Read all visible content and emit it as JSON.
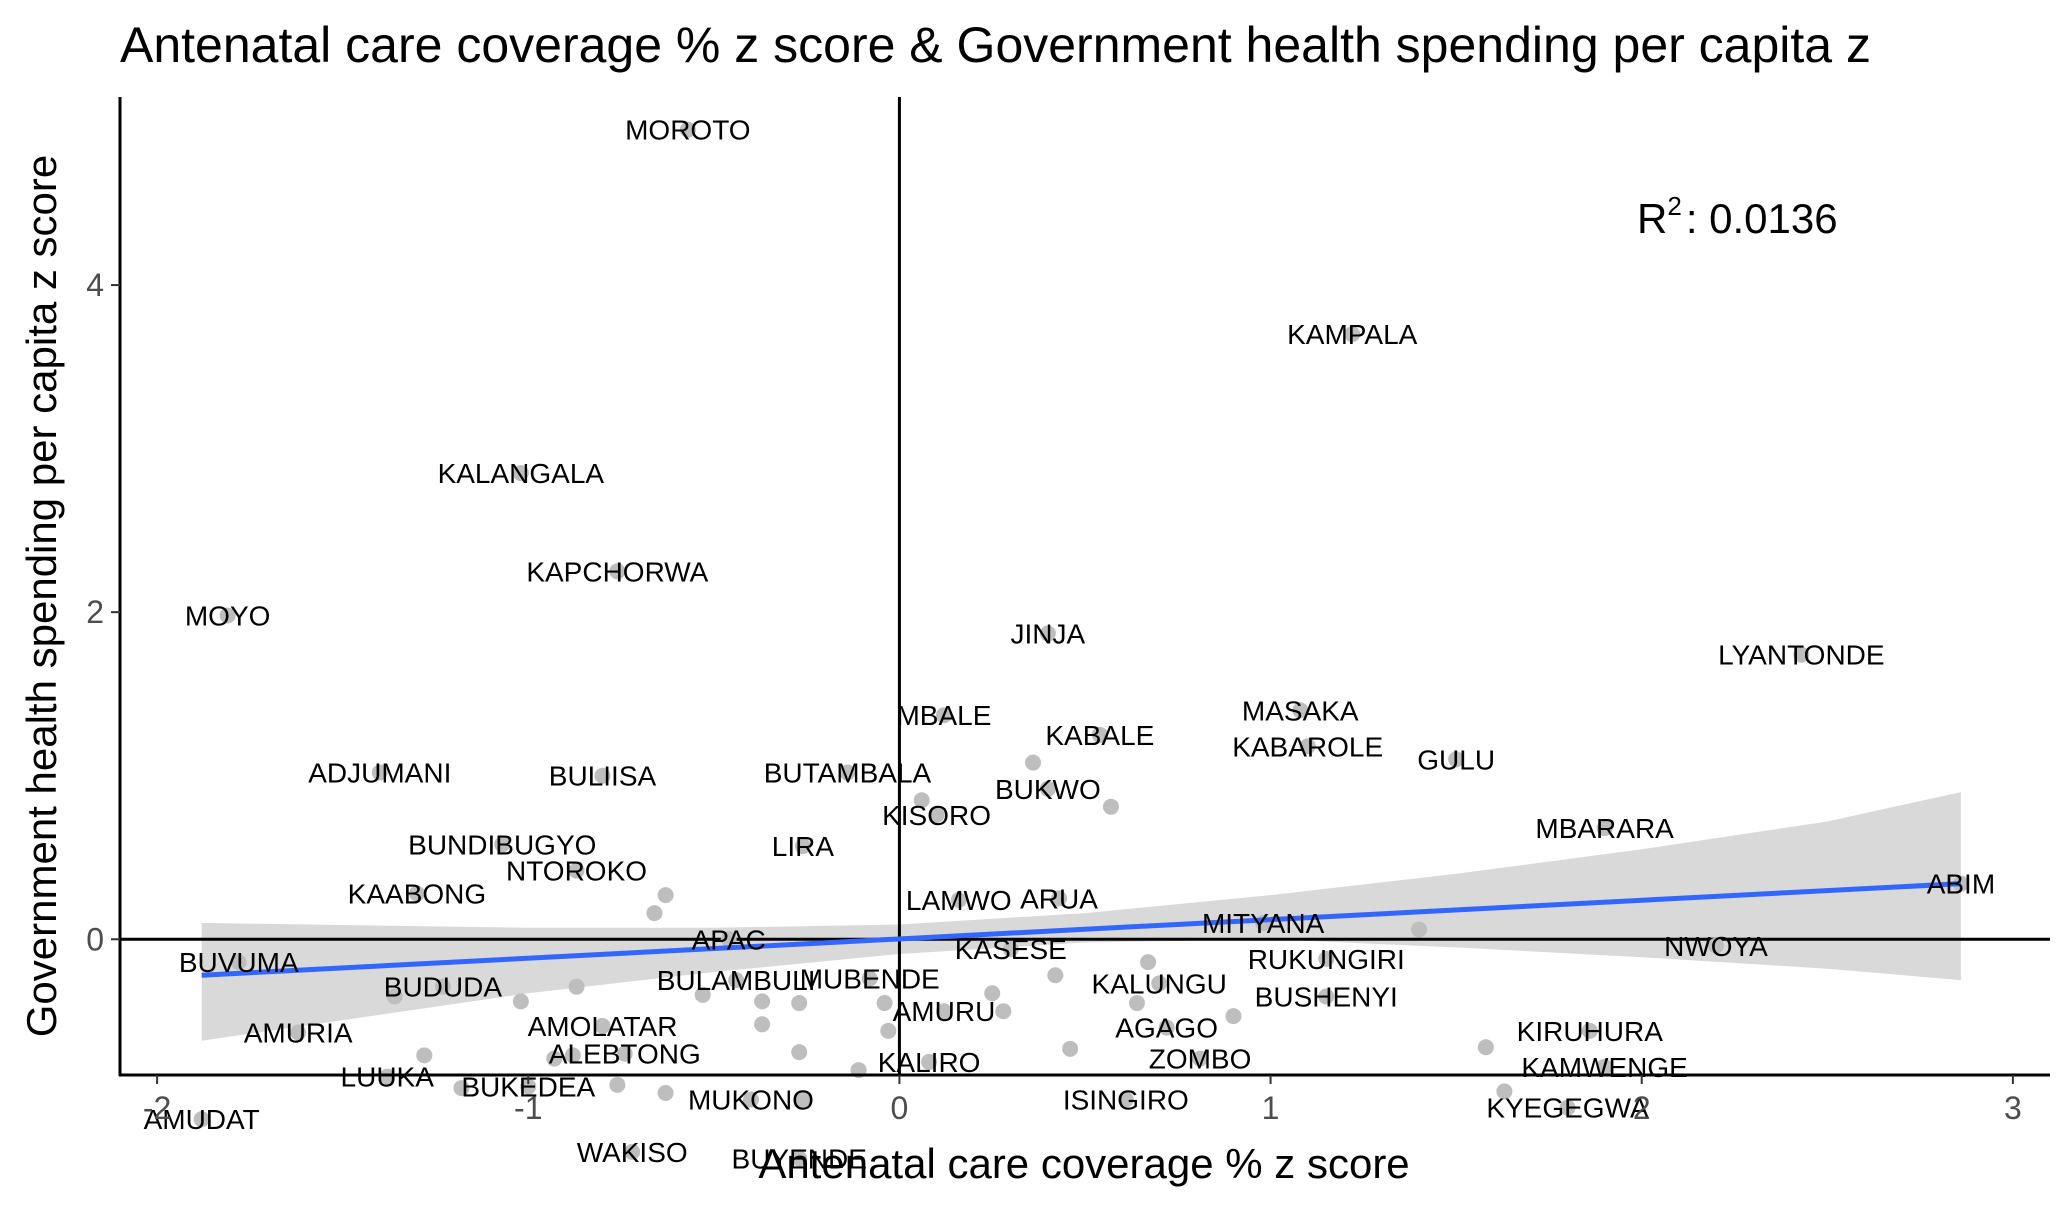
{
  "chart_data": {
    "type": "scatter",
    "title": "Antenatal care coverage % z score & Government health spending per capita z",
    "xlabel": "Antenatal care coverage % z score",
    "ylabel": "Government health spending per capita z score",
    "xlim": [
      -2.1,
      3.1
    ],
    "ylim": [
      -0.83,
      5.15
    ],
    "xticks": [
      -2,
      -1,
      0,
      1,
      2,
      3
    ],
    "yticks": [
      0,
      2,
      4
    ],
    "reference_lines": {
      "x": 0,
      "y": 0
    },
    "annotation": {
      "r2_label": "R",
      "r2_exponent": "2",
      "r2_value": ": 0.0136"
    },
    "colors": {
      "points": "#bebebe",
      "fit_line": "#3366ff",
      "ribbon": "#d9d9d9",
      "axis": "#000000"
    },
    "fit": {
      "x": [
        -1.88,
        2.86
      ],
      "y": [
        -0.22,
        0.34
      ]
    },
    "confidence_band": {
      "x": [
        -1.88,
        -1.0,
        -0.5,
        0.0,
        0.5,
        1.0,
        1.5,
        2.0,
        2.5,
        2.86
      ],
      "upper": [
        0.1,
        0.07,
        0.07,
        0.09,
        0.16,
        0.27,
        0.4,
        0.55,
        0.72,
        0.9
      ],
      "lower": [
        -0.62,
        -0.33,
        -0.2,
        -0.09,
        -0.02,
        0.0,
        -0.05,
        -0.11,
        -0.18,
        -0.25
      ]
    },
    "points": [
      {
        "x": -0.57,
        "y": 4.95,
        "label": "MOROTO"
      },
      {
        "x": 1.22,
        "y": 3.7,
        "label": "KAMPALA"
      },
      {
        "x": -1.02,
        "y": 2.85,
        "label": "KALANGALA"
      },
      {
        "x": -0.76,
        "y": 2.25,
        "label": "KAPCHORWA"
      },
      {
        "x": -1.81,
        "y": 1.98,
        "label": "MOYO"
      },
      {
        "x": 0.4,
        "y": 1.87,
        "label": "JINJA"
      },
      {
        "x": 2.43,
        "y": 1.74,
        "label": "LYANTONDE"
      },
      {
        "x": 1.08,
        "y": 1.4,
        "label": "MASAKA"
      },
      {
        "x": 0.12,
        "y": 1.37,
        "label": "MBALE"
      },
      {
        "x": 0.54,
        "y": 1.25,
        "label": "KABALE"
      },
      {
        "x": 1.1,
        "y": 1.18,
        "label": "KABAROLE"
      },
      {
        "x": 1.5,
        "y": 1.1,
        "label": "GULU"
      },
      {
        "x": 0.36,
        "y": 1.08,
        "label": ""
      },
      {
        "x": -0.14,
        "y": 1.02,
        "label": "BUTAMBALA"
      },
      {
        "x": -1.4,
        "y": 1.02,
        "label": "ADJUMANI"
      },
      {
        "x": -0.8,
        "y": 1.0,
        "label": "BULIISA"
      },
      {
        "x": 0.4,
        "y": 0.92,
        "label": "BUKWO"
      },
      {
        "x": 0.06,
        "y": 0.85,
        "label": ""
      },
      {
        "x": 0.57,
        "y": 0.81,
        "label": ""
      },
      {
        "x": 0.1,
        "y": 0.76,
        "label": "KISORO"
      },
      {
        "x": 1.9,
        "y": 0.68,
        "label": "MBARARA"
      },
      {
        "x": -1.07,
        "y": 0.58,
        "label": "BUNDIBUGYO"
      },
      {
        "x": -0.26,
        "y": 0.57,
        "label": "LIRA"
      },
      {
        "x": -0.87,
        "y": 0.42,
        "label": "NTOROKO"
      },
      {
        "x": 2.86,
        "y": 0.34,
        "label": "ABIM"
      },
      {
        "x": -1.3,
        "y": 0.28,
        "label": "KAABONG"
      },
      {
        "x": -0.63,
        "y": 0.27,
        "label": ""
      },
      {
        "x": 0.43,
        "y": 0.25,
        "label": "ARUA"
      },
      {
        "x": 0.16,
        "y": 0.24,
        "label": "LAMWO"
      },
      {
        "x": -0.66,
        "y": 0.16,
        "label": ""
      },
      {
        "x": 0.98,
        "y": 0.1,
        "label": "MITYANA"
      },
      {
        "x": 1.4,
        "y": 0.06,
        "label": ""
      },
      {
        "x": -0.46,
        "y": 0.0,
        "label": "APAC"
      },
      {
        "x": 2.2,
        "y": -0.04,
        "label": "NWOYA"
      },
      {
        "x": 0.3,
        "y": -0.06,
        "label": "KASESE"
      },
      {
        "x": -1.78,
        "y": -0.14,
        "label": "BUVUMA"
      },
      {
        "x": 1.15,
        "y": -0.12,
        "label": "RUKUNGIRI"
      },
      {
        "x": 0.67,
        "y": -0.14,
        "label": ""
      },
      {
        "x": 0.42,
        "y": -0.22,
        "label": ""
      },
      {
        "x": -0.08,
        "y": -0.24,
        "label": "MUBENDE"
      },
      {
        "x": -0.44,
        "y": -0.25,
        "label": "BULAMBULI"
      },
      {
        "x": 0.7,
        "y": -0.27,
        "label": "KALUNGU"
      },
      {
        "x": -0.87,
        "y": -0.29,
        "label": ""
      },
      {
        "x": -1.23,
        "y": -0.29,
        "label": "BUDUDA"
      },
      {
        "x": -1.02,
        "y": -0.38,
        "label": ""
      },
      {
        "x": -1.36,
        "y": -0.35,
        "label": ""
      },
      {
        "x": -0.53,
        "y": -0.34,
        "label": ""
      },
      {
        "x": -0.37,
        "y": -0.38,
        "label": ""
      },
      {
        "x": -0.27,
        "y": -0.39,
        "label": ""
      },
      {
        "x": -0.04,
        "y": -0.39,
        "label": ""
      },
      {
        "x": 0.64,
        "y": -0.39,
        "label": ""
      },
      {
        "x": 1.15,
        "y": -0.35,
        "label": "BUSHENYI"
      },
      {
        "x": 0.25,
        "y": -0.33,
        "label": ""
      },
      {
        "x": 0.12,
        "y": -0.44,
        "label": "AMURU"
      },
      {
        "x": 0.28,
        "y": -0.44,
        "label": ""
      },
      {
        "x": 0.9,
        "y": -0.47,
        "label": ""
      },
      {
        "x": -0.8,
        "y": -0.53,
        "label": "AMOLATAR"
      },
      {
        "x": 0.72,
        "y": -0.54,
        "label": "AGAGO"
      },
      {
        "x": -0.37,
        "y": -0.52,
        "label": ""
      },
      {
        "x": -0.03,
        "y": -0.56,
        "label": ""
      },
      {
        "x": -1.62,
        "y": -0.57,
        "label": "AMURIA"
      },
      {
        "x": 1.86,
        "y": -0.56,
        "label": "KIRUHURA"
      },
      {
        "x": 1.58,
        "y": -0.66,
        "label": ""
      },
      {
        "x": 0.46,
        "y": -0.67,
        "label": ""
      },
      {
        "x": -0.27,
        "y": -0.69,
        "label": ""
      },
      {
        "x": -0.74,
        "y": -0.7,
        "label": "ALEBTONG"
      },
      {
        "x": -1.28,
        "y": -0.71,
        "label": ""
      },
      {
        "x": -0.93,
        "y": -0.73,
        "label": ""
      },
      {
        "x": 0.81,
        "y": -0.73,
        "label": "ZOMBO"
      },
      {
        "x": -0.88,
        "y": -0.71,
        "label": ""
      },
      {
        "x": 0.08,
        "y": -0.75,
        "label": "KALIRO"
      },
      {
        "x": -0.11,
        "y": -0.8,
        "label": ""
      },
      {
        "x": 1.9,
        "y": -0.78,
        "label": "KAMWENGE"
      },
      {
        "x": -1.38,
        "y": -0.84,
        "label": "LUUKA"
      },
      {
        "x": -0.76,
        "y": -0.89,
        "label": ""
      },
      {
        "x": -1.0,
        "y": -0.9,
        "label": "BUKEDEA"
      },
      {
        "x": -1.18,
        "y": -0.91,
        "label": ""
      },
      {
        "x": -0.63,
        "y": -0.94,
        "label": ""
      },
      {
        "x": 1.63,
        "y": -0.93,
        "label": ""
      },
      {
        "x": 0.61,
        "y": -0.98,
        "label": "ISINGIRO"
      },
      {
        "x": -0.4,
        "y": -0.98,
        "label": "MUKONO"
      },
      {
        "x": -0.26,
        "y": -0.98,
        "label": ""
      },
      {
        "x": 1.8,
        "y": -1.03,
        "label": "KYEGEGWA"
      },
      {
        "x": -1.88,
        "y": -1.1,
        "label": "AMUDAT"
      },
      {
        "x": -0.72,
        "y": -1.3,
        "label": "WAKISO"
      },
      {
        "x": -0.27,
        "y": -1.34,
        "label": "BUYENDE"
      }
    ]
  }
}
